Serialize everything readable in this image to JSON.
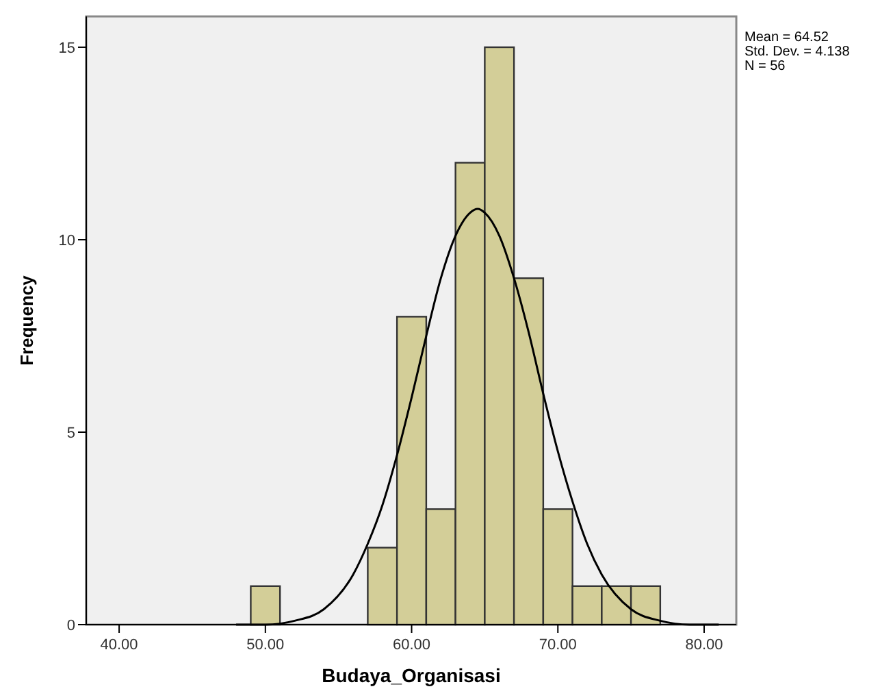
{
  "chart_data": {
    "type": "histogram",
    "xlabel": "Budaya_Organisasi",
    "ylabel": "Frequency",
    "annotations": [
      "Mean = 64.52\nStd. Dev. = 4.138\nN = 56"
    ],
    "xlim": [
      37.75,
      82.2
    ],
    "xticks": [
      {
        "value": 40,
        "label": "40.00"
      },
      {
        "value": 50,
        "label": "50.00"
      },
      {
        "value": 60,
        "label": "60.00"
      },
      {
        "value": 70,
        "label": "70.00"
      },
      {
        "value": 80,
        "label": "80.00"
      }
    ],
    "ylim": [
      0,
      15.8
    ],
    "yticks": [
      0,
      5,
      10,
      15
    ],
    "grid": false,
    "color": "#d3ce98",
    "bins": [
      49,
      51,
      53,
      55,
      57,
      59,
      61,
      63,
      65,
      67,
      69,
      71,
      73,
      75,
      77
    ],
    "values": [
      1,
      0,
      0,
      0,
      2,
      8,
      3,
      12,
      15,
      9,
      3,
      1,
      1,
      1
    ],
    "series": [
      {
        "type": "line",
        "color": "#000000",
        "x": [
          48,
          50,
          52,
          54,
          56,
          57,
          58,
          59,
          60,
          61,
          62,
          63,
          64,
          64.52,
          65,
          66,
          67,
          68,
          69,
          70,
          71,
          72,
          73,
          75,
          77,
          79,
          81
        ],
        "values": [
          0.0,
          0.0,
          0.1,
          0.4,
          1.3,
          2.1,
          3.1,
          4.4,
          5.9,
          7.5,
          9.0,
          10.1,
          10.7,
          10.8,
          10.7,
          10.1,
          9.0,
          7.6,
          6.0,
          4.5,
          3.2,
          2.1,
          1.3,
          0.4,
          0.1,
          0.0,
          0.0
        ]
      }
    ]
  }
}
